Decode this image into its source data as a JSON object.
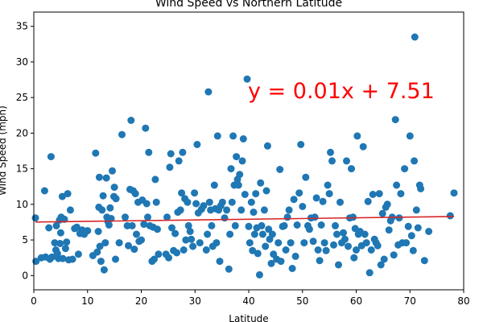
{
  "chart_data": {
    "type": "scatter",
    "title": "Wind Speed vs Northern Latitude",
    "xlabel": "Latitude",
    "ylabel": "Wind Speed (mph)",
    "xlim": [
      0,
      80
    ],
    "ylim": [
      -2,
      37
    ],
    "xticks": [
      0,
      10,
      20,
      30,
      40,
      50,
      60,
      70,
      80
    ],
    "yticks": [
      0,
      5,
      10,
      15,
      20,
      25,
      30,
      35
    ],
    "grid": false,
    "colors": {
      "points": "#1f77b4",
      "regression": "#d62728",
      "annotation": "#ff0000"
    },
    "regression": {
      "slope": 0.01,
      "intercept": 7.51,
      "equation": "y = 0.01x + 7.51"
    },
    "points": [
      [
        0.3,
        8.1
      ],
      [
        0.4,
        2.0
      ],
      [
        1.4,
        2.5
      ],
      [
        2.0,
        11.9
      ],
      [
        2.2,
        2.6
      ],
      [
        2.8,
        6.7
      ],
      [
        3.0,
        2.3
      ],
      [
        3.2,
        16.7
      ],
      [
        3.4,
        2.6
      ],
      [
        3.9,
        4.6
      ],
      [
        4.1,
        3.6
      ],
      [
        4.2,
        7.0
      ],
      [
        4.4,
        3.1
      ],
      [
        4.6,
        2.4
      ],
      [
        4.8,
        7.8
      ],
      [
        4.9,
        4.5
      ],
      [
        5.0,
        6.0
      ],
      [
        5.1,
        8.2
      ],
      [
        5.3,
        11.1
      ],
      [
        5.4,
        2.4
      ],
      [
        5.7,
        7.9
      ],
      [
        5.9,
        3.8
      ],
      [
        6.1,
        4.7
      ],
      [
        6.3,
        11.5
      ],
      [
        6.5,
        2.2
      ],
      [
        6.8,
        9.2
      ],
      [
        7.2,
        2.3
      ],
      [
        7.6,
        6.6
      ],
      [
        8.0,
        6.8
      ],
      [
        8.3,
        3.0
      ],
      [
        8.6,
        5.9
      ],
      [
        9.0,
        6.4
      ],
      [
        9.4,
        5.8
      ],
      [
        10.0,
        6.3
      ],
      [
        11.0,
        2.8
      ],
      [
        11.5,
        17.2
      ],
      [
        11.8,
        3.3
      ],
      [
        12.0,
        6.2
      ],
      [
        12.1,
        9.6
      ],
      [
        12.2,
        13.8
      ],
      [
        12.3,
        4.1
      ],
      [
        12.5,
        2.0
      ],
      [
        12.7,
        9.2
      ],
      [
        12.9,
        11.2
      ],
      [
        13.1,
        0.8
      ],
      [
        13.3,
        4.6
      ],
      [
        13.5,
        13.7
      ],
      [
        13.6,
        8.2
      ],
      [
        13.8,
        7.6
      ],
      [
        14.0,
        7.1
      ],
      [
        14.2,
        9.5
      ],
      [
        14.4,
        8.0
      ],
      [
        14.6,
        14.7
      ],
      [
        14.9,
        11.1
      ],
      [
        15.0,
        12.4
      ],
      [
        15.2,
        2.3
      ],
      [
        15.3,
        10.8
      ],
      [
        15.9,
        4.6
      ],
      [
        16.4,
        19.8
      ],
      [
        17.0,
        8.2
      ],
      [
        17.4,
        7.0
      ],
      [
        17.6,
        4.2
      ],
      [
        17.9,
        12.1
      ],
      [
        18.1,
        21.8
      ],
      [
        18.3,
        7.0
      ],
      [
        18.5,
        11.9
      ],
      [
        18.7,
        3.7
      ],
      [
        18.9,
        11.5
      ],
      [
        19.1,
        5.8
      ],
      [
        19.4,
        10.3
      ],
      [
        19.6,
        4.8
      ],
      [
        20.0,
        5.0
      ],
      [
        20.2,
        10.6
      ],
      [
        20.5,
        7.2
      ],
      [
        20.8,
        20.7
      ],
      [
        21.0,
        10.1
      ],
      [
        21.2,
        8.2
      ],
      [
        21.4,
        17.3
      ],
      [
        21.6,
        7.0
      ],
      [
        22.0,
        2.0
      ],
      [
        22.2,
        6.8
      ],
      [
        22.4,
        2.3
      ],
      [
        22.6,
        13.5
      ],
      [
        22.8,
        10.3
      ],
      [
        23.0,
        6.5
      ],
      [
        23.2,
        3.0
      ],
      [
        24.6,
        3.0
      ],
      [
        24.8,
        8.2
      ],
      [
        25.1,
        2.5
      ],
      [
        25.3,
        15.2
      ],
      [
        25.5,
        17.1
      ],
      [
        25.7,
        6.7
      ],
      [
        26.0,
        3.5
      ],
      [
        26.3,
        5.9
      ],
      [
        26.6,
        3.2
      ],
      [
        26.8,
        8.9
      ],
      [
        27.0,
        16.1
      ],
      [
        27.3,
        9.2
      ],
      [
        27.5,
        11.6
      ],
      [
        27.7,
        17.3
      ],
      [
        27.9,
        3.6
      ],
      [
        28.1,
        10.8
      ],
      [
        28.3,
        5.0
      ],
      [
        28.6,
        10.3
      ],
      [
        28.8,
        7.0
      ],
      [
        29.1,
        6.2
      ],
      [
        29.3,
        5.1
      ],
      [
        29.6,
        4.1
      ],
      [
        29.9,
        11.6
      ],
      [
        30.2,
        10.1
      ],
      [
        30.4,
        18.4
      ],
      [
        30.6,
        8.8
      ],
      [
        30.9,
        4.6
      ],
      [
        31.2,
        9.3
      ],
      [
        31.6,
        9.8
      ],
      [
        32.1,
        3.6
      ],
      [
        32.3,
        5.8
      ],
      [
        32.5,
        25.8
      ],
      [
        32.7,
        10.3
      ],
      [
        32.9,
        9.2
      ],
      [
        33.1,
        7.0
      ],
      [
        33.3,
        4.1
      ],
      [
        33.6,
        12.7
      ],
      [
        33.8,
        9.4
      ],
      [
        34.0,
        4.6
      ],
      [
        34.2,
        19.6
      ],
      [
        34.4,
        9.2
      ],
      [
        34.6,
        2.0
      ],
      [
        34.8,
        9.8
      ],
      [
        35.1,
        10.3
      ],
      [
        35.5,
        8.1
      ],
      [
        35.9,
        9.2
      ],
      [
        36.3,
        0.9
      ],
      [
        36.5,
        5.8
      ],
      [
        36.7,
        15.0
      ],
      [
        36.9,
        10.3
      ],
      [
        37.1,
        19.6
      ],
      [
        37.3,
        12.7
      ],
      [
        37.5,
        7.0
      ],
      [
        37.7,
        16.7
      ],
      [
        37.9,
        13.5
      ],
      [
        38.1,
        12.7
      ],
      [
        38.3,
        14.2
      ],
      [
        38.6,
        9.2
      ],
      [
        38.8,
        16.1
      ],
      [
        39.0,
        19.2
      ],
      [
        39.3,
        11.4
      ],
      [
        39.7,
        27.6
      ],
      [
        40.0,
        6.9
      ],
      [
        40.2,
        4.6
      ],
      [
        40.5,
        10.3
      ],
      [
        40.7,
        3.5
      ],
      [
        40.9,
        8.9
      ],
      [
        41.1,
        5.8
      ],
      [
        41.3,
        11.5
      ],
      [
        41.5,
        6.7
      ],
      [
        41.7,
        3.1
      ],
      [
        42.0,
        0.1
      ],
      [
        42.2,
        13.0
      ],
      [
        42.4,
        7.0
      ],
      [
        42.6,
        5.8
      ],
      [
        42.9,
        9.2
      ],
      [
        43.1,
        4.1
      ],
      [
        43.3,
        11.9
      ],
      [
        43.5,
        18.2
      ],
      [
        43.7,
        6.5
      ],
      [
        43.9,
        5.1
      ],
      [
        44.2,
        1.7
      ],
      [
        44.4,
        5.8
      ],
      [
        44.6,
        3.0
      ],
      [
        45.2,
        2.3
      ],
      [
        45.5,
        4.6
      ],
      [
        45.8,
        14.9
      ],
      [
        46.0,
        2.0
      ],
      [
        46.3,
        6.9
      ],
      [
        46.6,
        7.0
      ],
      [
        46.9,
        3.6
      ],
      [
        47.2,
        8.2
      ],
      [
        47.5,
        9.2
      ],
      [
        47.8,
        4.6
      ],
      [
        48.1,
        1.0
      ],
      [
        48.4,
        10.7
      ],
      [
        48.7,
        2.7
      ],
      [
        49.0,
        7.1
      ],
      [
        49.4,
        11.6
      ],
      [
        49.7,
        18.4
      ],
      [
        50.0,
        9.7
      ],
      [
        50.3,
        4.6
      ],
      [
        50.6,
        13.8
      ],
      [
        51.0,
        7.0
      ],
      [
        51.3,
        6.5
      ],
      [
        51.6,
        8.1
      ],
      [
        52.0,
        4.8
      ],
      [
        52.3,
        8.2
      ],
      [
        52.6,
        10.9
      ],
      [
        52.9,
        3.6
      ],
      [
        53.2,
        2.1
      ],
      [
        53.5,
        7.1
      ],
      [
        53.8,
        10.4
      ],
      [
        54.1,
        4.6
      ],
      [
        54.4,
        3.5
      ],
      [
        54.7,
        12.7
      ],
      [
        55.0,
        11.5
      ],
      [
        55.2,
        17.3
      ],
      [
        55.5,
        16.1
      ],
      [
        55.8,
        4.3
      ],
      [
        56.1,
        7.0
      ],
      [
        56.4,
        5.8
      ],
      [
        56.7,
        1.5
      ],
      [
        57.0,
        10.3
      ],
      [
        57.3,
        4.6
      ],
      [
        57.6,
        6.0
      ],
      [
        57.9,
        5.1
      ],
      [
        58.2,
        16.1
      ],
      [
        58.5,
        4.1
      ],
      [
        58.8,
        8.1
      ],
      [
        59.1,
        15.0
      ],
      [
        59.4,
        8.2
      ],
      [
        59.6,
        2.5
      ],
      [
        59.8,
        6.6
      ],
      [
        60.0,
        3.6
      ],
      [
        60.2,
        19.6
      ],
      [
        60.4,
        5.8
      ],
      [
        60.7,
        6.2
      ],
      [
        61.0,
        4.2
      ],
      [
        61.3,
        18.1
      ],
      [
        61.6,
        5.8
      ],
      [
        61.9,
        4.6
      ],
      [
        62.2,
        10.4
      ],
      [
        62.5,
        0.4
      ],
      [
        62.8,
        3.6
      ],
      [
        63.1,
        11.4
      ],
      [
        63.4,
        5.1
      ],
      [
        63.7,
        4.6
      ],
      [
        64.0,
        4.2
      ],
      [
        64.3,
        11.5
      ],
      [
        64.6,
        1.5
      ],
      [
        64.9,
        8.7
      ],
      [
        65.2,
        2.3
      ],
      [
        65.5,
        9.6
      ],
      [
        65.8,
        10.0
      ],
      [
        66.1,
        6.4
      ],
      [
        66.4,
        7.7
      ],
      [
        66.7,
        8.2
      ],
      [
        67.0,
        2.9
      ],
      [
        67.3,
        21.9
      ],
      [
        67.5,
        12.7
      ],
      [
        67.8,
        4.3
      ],
      [
        68.0,
        8.1
      ],
      [
        68.3,
        11.5
      ],
      [
        68.6,
        4.6
      ],
      [
        69.0,
        15.0
      ],
      [
        69.3,
        4.6
      ],
      [
        69.7,
        6.9
      ],
      [
        70.0,
        19.6
      ],
      [
        70.3,
        5.6
      ],
      [
        70.6,
        3.5
      ],
      [
        70.8,
        16.1
      ],
      [
        70.9,
        33.5
      ],
      [
        71.2,
        9.2
      ],
      [
        71.5,
        6.7
      ],
      [
        71.8,
        12.7
      ],
      [
        72.0,
        12.2
      ],
      [
        72.7,
        2.1
      ],
      [
        73.5,
        6.2
      ],
      [
        77.5,
        8.4
      ],
      [
        78.2,
        11.6
      ]
    ]
  }
}
